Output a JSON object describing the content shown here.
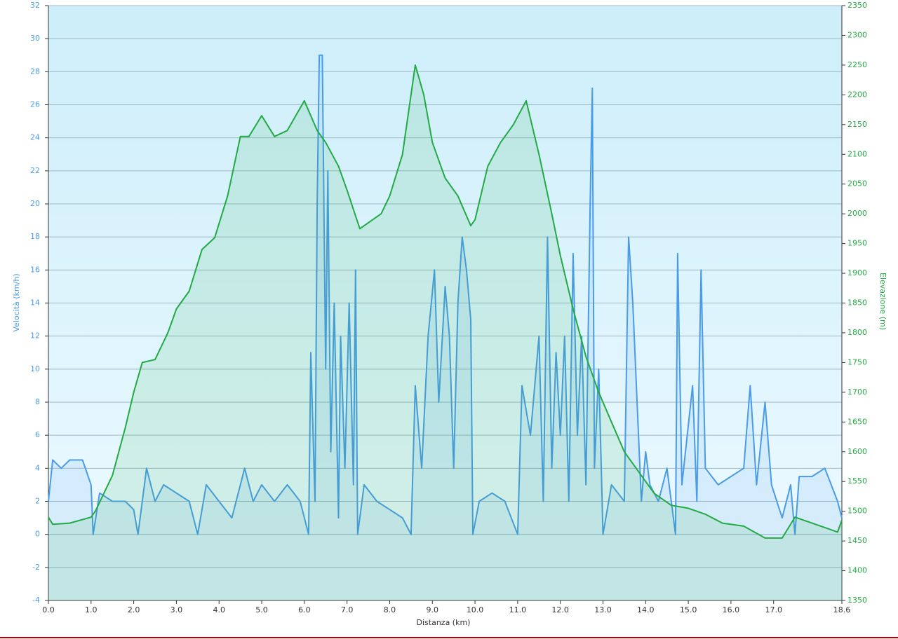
{
  "chart_data": {
    "type": "line",
    "xlabel": "Distanza  (km)",
    "ylabel": "Velocità (km/h)",
    "y2label": "Elevazione (m)",
    "xlim": [
      0,
      18.6
    ],
    "xticks": [
      {
        "value": 0,
        "label": "0.0"
      },
      {
        "value": 1,
        "label": "1.0"
      },
      {
        "value": 2,
        "label": "2.0"
      },
      {
        "value": 3,
        "label": "3.0"
      },
      {
        "value": 4,
        "label": "4.0"
      },
      {
        "value": 5,
        "label": "5.0"
      },
      {
        "value": 6,
        "label": "6.0"
      },
      {
        "value": 7,
        "label": "7.0"
      },
      {
        "value": 8,
        "label": "8.0"
      },
      {
        "value": 9,
        "label": "9.0"
      },
      {
        "value": 10,
        "label": "10.0"
      },
      {
        "value": 11,
        "label": "11.0"
      },
      {
        "value": 12,
        "label": "12.0"
      },
      {
        "value": 13,
        "label": "13.0"
      },
      {
        "value": 14,
        "label": "14.0"
      },
      {
        "value": 15,
        "label": "15.0"
      },
      {
        "value": 16,
        "label": "16.0"
      },
      {
        "value": 17,
        "label": "17.0"
      },
      18.6
    ],
    "ylim": [
      -4,
      32
    ],
    "yticks": [
      -4,
      -2,
      0,
      2,
      4,
      6,
      8,
      10,
      12,
      14,
      16,
      18,
      20,
      22,
      24,
      26,
      28,
      30,
      32
    ],
    "y2lim": [
      1350,
      2350
    ],
    "y2ticks": [
      1350,
      1400,
      1450,
      1500,
      1550,
      1600,
      1650,
      1700,
      1750,
      1800,
      1850,
      1900,
      1950,
      2000,
      2050,
      2100,
      2150,
      2200,
      2250,
      2300,
      2350
    ],
    "grid": true,
    "series": [
      {
        "color": "#22aa44",
        "axis": "y2",
        "x": [
          0,
          0.1,
          0.5,
          1.0,
          1.1,
          1.5,
          1.8,
          2.0,
          2.2,
          2.5,
          2.8,
          3.0,
          3.3,
          3.6,
          3.9,
          4.2,
          4.5,
          4.7,
          5.0,
          5.3,
          5.6,
          6.0,
          6.3,
          6.5,
          6.8,
          7.0,
          7.3,
          7.5,
          7.8,
          8.0,
          8.3,
          8.6,
          8.8,
          9.0,
          9.3,
          9.6,
          9.9,
          10.0,
          10.3,
          10.6,
          10.9,
          11.2,
          11.5,
          11.8,
          12.0,
          12.3,
          12.6,
          12.9,
          13.2,
          13.5,
          13.9,
          14.2,
          14.6,
          15.0,
          15.4,
          15.8,
          16.3,
          16.8,
          17.2,
          17.5,
          17.9,
          18.3,
          18.5,
          18.6
        ],
        "values": [
          1490,
          1478,
          1480,
          1490,
          1500,
          1560,
          1640,
          1700,
          1750,
          1755,
          1800,
          1840,
          1870,
          1940,
          1960,
          2030,
          2130,
          2130,
          2165,
          2130,
          2140,
          2190,
          2140,
          2120,
          2080,
          2040,
          1975,
          1985,
          2000,
          2030,
          2100,
          2250,
          2200,
          2120,
          2060,
          2030,
          1980,
          1990,
          2080,
          2120,
          2150,
          2190,
          2100,
          2000,
          1930,
          1840,
          1760,
          1700,
          1650,
          1600,
          1560,
          1530,
          1510,
          1505,
          1495,
          1480,
          1475,
          1455,
          1455,
          1490,
          1480,
          1470,
          1465,
          1485
        ]
      },
      {
        "color": "#4a9be8",
        "axis": "y",
        "x": [
          0,
          0.1,
          0.3,
          0.5,
          0.8,
          1.0,
          1.05,
          1.2,
          1.5,
          1.8,
          2.0,
          2.1,
          2.3,
          2.5,
          2.7,
          3.0,
          3.3,
          3.5,
          3.7,
          4.0,
          4.3,
          4.6,
          4.8,
          5.0,
          5.3,
          5.6,
          5.9,
          6.1,
          6.15,
          6.25,
          6.3,
          6.35,
          6.42,
          6.5,
          6.55,
          6.62,
          6.7,
          6.8,
          6.85,
          6.95,
          7.05,
          7.15,
          7.2,
          7.25,
          7.4,
          7.7,
          8.0,
          8.3,
          8.5,
          8.6,
          8.75,
          8.9,
          9.05,
          9.15,
          9.3,
          9.4,
          9.5,
          9.6,
          9.7,
          9.8,
          9.9,
          9.95,
          10.1,
          10.4,
          10.7,
          11.0,
          11.1,
          11.3,
          11.5,
          11.6,
          11.7,
          11.8,
          11.9,
          12.0,
          12.1,
          12.2,
          12.3,
          12.4,
          12.5,
          12.6,
          12.7,
          12.75,
          12.8,
          12.9,
          13.0,
          13.2,
          13.5,
          13.6,
          13.7,
          13.8,
          13.9,
          14.0,
          14.1,
          14.3,
          14.5,
          14.7,
          14.75,
          14.85,
          15.1,
          15.2,
          15.3,
          15.4,
          15.7,
          16.0,
          16.3,
          16.45,
          16.6,
          16.8,
          16.95,
          17.2,
          17.4,
          17.5,
          17.6,
          17.9,
          18.2,
          18.5,
          18.6
        ],
        "values": [
          2,
          4.5,
          4,
          4.5,
          4.5,
          3,
          0,
          2.5,
          2,
          2,
          1.5,
          0,
          4,
          2,
          3,
          2.5,
          2,
          0,
          3,
          2,
          1,
          4,
          2,
          3,
          2,
          3,
          2,
          0,
          11,
          2,
          20,
          29,
          29,
          10,
          22,
          5,
          14,
          1,
          12,
          4,
          14,
          3,
          16,
          0,
          3,
          2,
          1.5,
          1,
          0,
          9,
          4,
          12,
          16,
          8,
          15,
          12,
          4,
          14,
          18,
          16,
          13,
          0,
          2,
          2.5,
          2,
          0,
          9,
          6,
          12,
          2,
          18,
          4,
          11,
          6,
          12,
          2,
          17,
          6,
          12,
          3,
          20,
          27,
          4,
          10,
          0,
          3,
          2,
          18,
          14,
          8,
          2,
          5,
          3,
          2,
          4,
          0,
          17,
          3,
          9,
          2,
          16,
          4,
          3,
          3.5,
          4,
          9,
          3,
          8,
          3,
          1,
          3,
          0,
          3.5,
          3.5,
          4,
          2,
          1
        ]
      }
    ]
  }
}
